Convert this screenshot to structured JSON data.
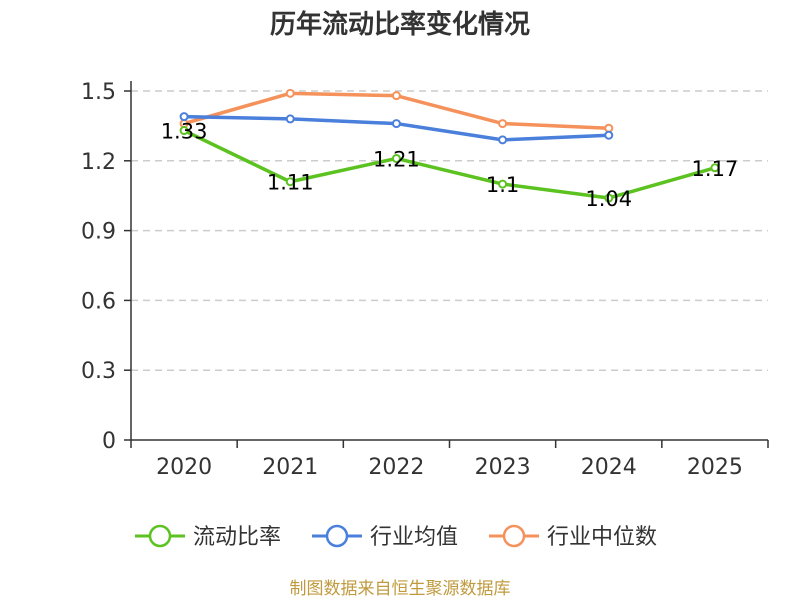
{
  "chart_data": {
    "type": "line",
    "title": "历年流动比率变化情况",
    "categories": [
      "2020",
      "2021",
      "2022",
      "2023",
      "2024",
      "2025"
    ],
    "ylim": [
      0,
      1.5
    ],
    "y_ticks": [
      "0",
      "0.3",
      "0.6",
      "0.9",
      "1.2",
      "1.5"
    ],
    "grid": true,
    "legend_position": "bottom",
    "series": [
      {
        "name": "流动比率",
        "color": "#5bc220",
        "values": [
          1.33,
          1.11,
          1.21,
          1.1,
          1.04,
          1.17
        ],
        "labels": [
          "1.33",
          "1.11",
          "1.21",
          "1.1",
          "1.04",
          "1.17"
        ]
      },
      {
        "name": "行业均值",
        "color": "#4a7fdb",
        "values": [
          1.39,
          1.38,
          1.36,
          1.29,
          1.31,
          null
        ]
      },
      {
        "name": "行业中位数",
        "color": "#f5915a",
        "values": [
          1.36,
          1.49,
          1.48,
          1.36,
          1.34,
          null
        ]
      }
    ],
    "source": "制图数据来自恒生聚源数据库",
    "source_color": "#c09a3e"
  }
}
